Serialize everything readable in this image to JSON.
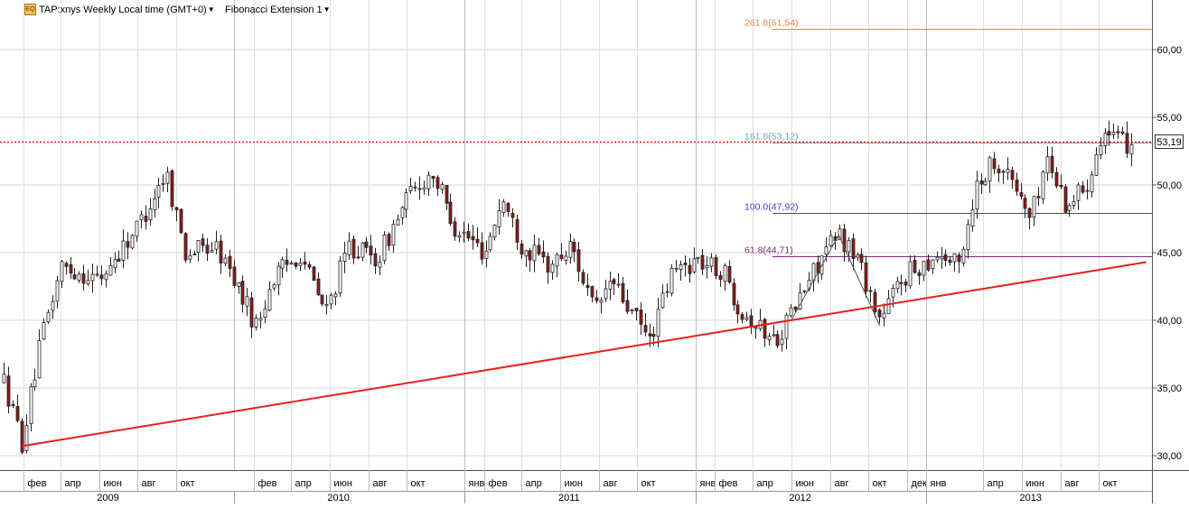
{
  "header": {
    "symbol_label": "TAP:xnys Weekly Local time (GMT+0)",
    "study_label": "Fibonacci Extension 1",
    "icon_text": "EQ"
  },
  "last_price_label": "53,19",
  "colors": {
    "up_candle": "#ffffff",
    "down_candle": "#8b1a1a",
    "trendline": "#e8201a",
    "last_price_line": "#e8201a",
    "fib_261": "#e0884a",
    "fib_161": "#6fa8b8",
    "fib_100": "#3b3fd0",
    "fib_61": "#7a2a7a"
  },
  "chart_data": {
    "type": "candlestick",
    "title": "",
    "ylim": [
      28,
      65
    ],
    "y_ticks": [
      "30,00",
      "35,00",
      "40,00",
      "45,00",
      "50,00",
      "55,00",
      "60,00"
    ],
    "y_tick_values": [
      30,
      35,
      40,
      45,
      50,
      55,
      60
    ],
    "month_ticks": [
      "фев",
      "апр",
      "июн",
      "авг",
      "окт",
      "фев",
      "апр",
      "июн",
      "авг",
      "окт",
      "янв",
      "фев",
      "апр",
      "июн",
      "авг",
      "окт",
      "янв",
      "фев",
      "апр",
      "июн",
      "авг",
      "окт",
      "дек",
      "янв",
      "апр",
      "июн",
      "авг",
      "окт"
    ],
    "month_tick_dates": [
      "2009-02-01",
      "2009-04-01",
      "2009-06-01",
      "2009-08-01",
      "2009-10-01",
      "2010-02-01",
      "2010-04-01",
      "2010-06-01",
      "2010-08-01",
      "2010-10-01",
      "2011-01-01",
      "2011-02-01",
      "2011-04-01",
      "2011-06-01",
      "2011-08-01",
      "2011-10-01",
      "2012-01-01",
      "2012-02-01",
      "2012-04-01",
      "2012-06-01",
      "2012-08-01",
      "2012-10-01",
      "2012-12-01",
      "2013-01-01",
      "2013-04-01",
      "2013-06-01",
      "2013-08-01",
      "2013-10-01"
    ],
    "year_labels": [
      "2009",
      "2010",
      "2011",
      "2012",
      "2013"
    ],
    "year_label_dates": [
      "2009-06-15",
      "2010-06-15",
      "2011-06-15",
      "2012-06-15",
      "2013-06-15"
    ],
    "grid": true,
    "anchors": [
      [
        "2009-01-01",
        35.5
      ],
      [
        "2009-01-29",
        31.0
      ],
      [
        "2009-03-01",
        38.5
      ],
      [
        "2009-04-01",
        44.0
      ],
      [
        "2009-06-01",
        43.0
      ],
      [
        "2009-08-01",
        47.0
      ],
      [
        "2009-09-15",
        51.0
      ],
      [
        "2009-10-15",
        45.0
      ],
      [
        "2009-12-01",
        45.5
      ],
      [
        "2010-01-01",
        43.0
      ],
      [
        "2010-02-05",
        39.5
      ],
      [
        "2010-03-01",
        43.0
      ],
      [
        "2010-04-15",
        45.0
      ],
      [
        "2010-05-25",
        40.5
      ],
      [
        "2010-07-01",
        45.5
      ],
      [
        "2010-08-15",
        44.5
      ],
      [
        "2010-10-01",
        49.0
      ],
      [
        "2010-11-10",
        51.0
      ],
      [
        "2010-12-15",
        47.0
      ],
      [
        "2011-02-01",
        45.0
      ],
      [
        "2011-03-01",
        49.0
      ],
      [
        "2011-04-01",
        45.5
      ],
      [
        "2011-05-15",
        44.0
      ],
      [
        "2011-06-20",
        45.5
      ],
      [
        "2011-07-25",
        40.5
      ],
      [
        "2011-08-20",
        43.0
      ],
      [
        "2011-09-15",
        41.0
      ],
      [
        "2011-10-20",
        38.5
      ],
      [
        "2011-11-25",
        43.5
      ],
      [
        "2012-01-01",
        44.5
      ],
      [
        "2012-02-15",
        43.5
      ],
      [
        "2012-03-10",
        41.0
      ],
      [
        "2012-04-10",
        39.5
      ],
      [
        "2012-05-05",
        38.5
      ],
      [
        "2012-06-01",
        40.5
      ],
      [
        "2012-07-15",
        44.5
      ],
      [
        "2012-08-15",
        46.3
      ],
      [
        "2012-09-15",
        44.5
      ],
      [
        "2012-10-19",
        40.0
      ],
      [
        "2012-11-20",
        43.0
      ],
      [
        "2012-12-20",
        44.0
      ],
      [
        "2013-01-20",
        45.0
      ],
      [
        "2013-02-20",
        44.0
      ],
      [
        "2013-03-20",
        50.0
      ],
      [
        "2013-04-20",
        52.0
      ],
      [
        "2013-05-20",
        50.0
      ],
      [
        "2013-06-15",
        47.5
      ],
      [
        "2013-07-10",
        52.0
      ],
      [
        "2013-08-10",
        48.5
      ],
      [
        "2013-09-10",
        50.0
      ],
      [
        "2013-10-05",
        54.0
      ],
      [
        "2013-11-05",
        53.0
      ],
      [
        "2013-11-21",
        53.19
      ]
    ],
    "trendline": {
      "from": [
        "2009-01-29",
        30.7
      ],
      "to": [
        "2013-12-15",
        44.3
      ]
    },
    "fib_swing": [
      [
        "2012-06-01",
        40.0
      ],
      [
        "2012-08-15",
        46.3
      ],
      [
        "2012-10-19",
        39.6
      ]
    ],
    "fib_levels": [
      {
        "label": "261.8(61,54)",
        "value": 61.54,
        "color_key": "fib_261"
      },
      {
        "label": "161.8(53,12)",
        "value": 53.12,
        "color_key": "fib_161"
      },
      {
        "label": "100.0(47,92)",
        "value": 47.92,
        "color_key": "fib_100"
      },
      {
        "label": "61.8(44,71)",
        "value": 44.71,
        "color_key": "fib_61"
      }
    ],
    "last_price": 53.19
  }
}
